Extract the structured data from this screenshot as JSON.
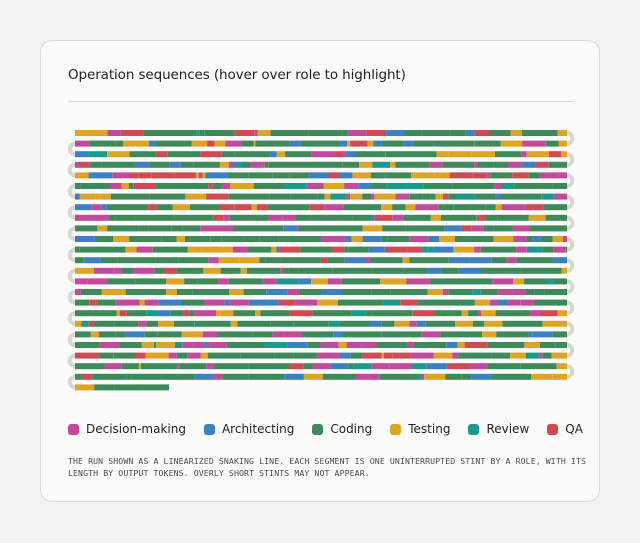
{
  "panel": {
    "title": "Operation sequences (hover over role to highlight)",
    "caption": "The run shown as a linearized snaking line. Each segment is one uninterrupted stint by a role, with its length by output tokens. Overly short stints may not appear."
  },
  "legend": [
    {
      "key": "decision",
      "label": "Decision-making",
      "color": "#c2499b"
    },
    {
      "key": "architecting",
      "label": "Architecting",
      "color": "#3b7fc4"
    },
    {
      "key": "coding",
      "label": "Coding",
      "color": "#3c8a5a"
    },
    {
      "key": "testing",
      "label": "Testing",
      "color": "#e0a425"
    },
    {
      "key": "review",
      "label": "Review",
      "color": "#199a8b"
    },
    {
      "key": "qa",
      "label": "QA",
      "color": "#d04a55"
    }
  ],
  "colors": {
    "background": "#f3f2ee",
    "card": "#fbfbf9",
    "connector": "#d7d6d1"
  }
}
